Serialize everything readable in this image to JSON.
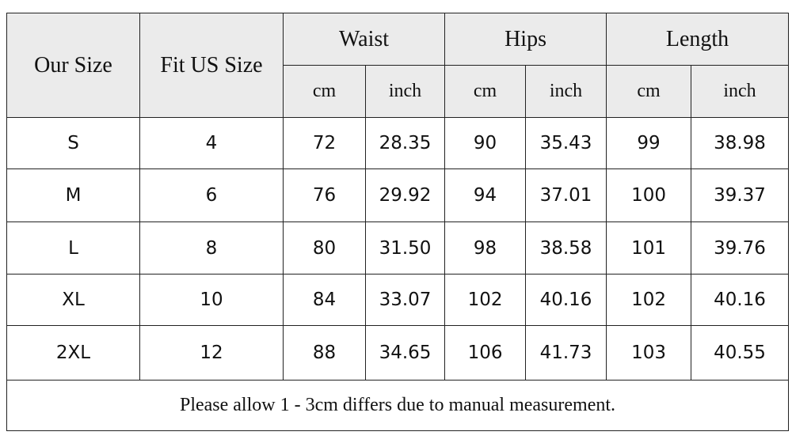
{
  "header": {
    "our_size": "Our Size",
    "fit_us_size": "Fit US Size",
    "groups": [
      "Waist",
      "Hips",
      "Length"
    ],
    "units": [
      "cm",
      "inch",
      "cm",
      "inch",
      "cm",
      "inch"
    ]
  },
  "table": {
    "rows": [
      [
        "S",
        "4",
        "72",
        "28.35",
        "90",
        "35.43",
        "99",
        "38.98"
      ],
      [
        "M",
        "6",
        "76",
        "29.92",
        "94",
        "37.01",
        "100",
        "39.37"
      ],
      [
        "L",
        "8",
        "80",
        "31.50",
        "98",
        "38.58",
        "101",
        "39.76"
      ],
      [
        "XL",
        "10",
        "84",
        "33.07",
        "102",
        "40.16",
        "102",
        "40.16"
      ],
      [
        "2XL",
        "12",
        "88",
        "34.65",
        "106",
        "41.73",
        "103",
        "40.55"
      ]
    ]
  },
  "footer": "Please allow 1 - 3cm differs due to manual measurement."
}
